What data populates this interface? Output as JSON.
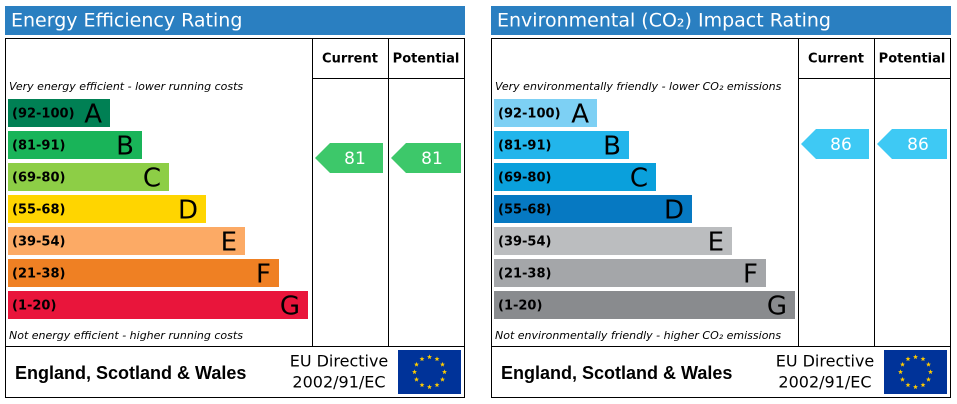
{
  "panels": [
    {
      "title": "Energy Efficiency Rating",
      "header": {
        "current": "Current",
        "potential": "Potential"
      },
      "top_note": "Very energy efficient - lower running costs",
      "bands": [
        {
          "range": "(92-100)",
          "letter": "A"
        },
        {
          "range": "(81-91)",
          "letter": "B"
        },
        {
          "range": "(69-80)",
          "letter": "C"
        },
        {
          "range": "(55-68)",
          "letter": "D"
        },
        {
          "range": "(39-54)",
          "letter": "E"
        },
        {
          "range": "(21-38)",
          "letter": "F"
        },
        {
          "range": "(1-20)",
          "letter": "G"
        }
      ],
      "bottom_note": "Not energy efficient - higher running costs",
      "current": 81,
      "potential": 81,
      "footer": {
        "region": "England, Scotland & Wales",
        "directive_line1": "EU Directive",
        "directive_line2": "2002/91/EC"
      }
    },
    {
      "title": "Environmental (CO₂) Impact Rating",
      "header": {
        "current": "Current",
        "potential": "Potential"
      },
      "top_note": "Very environmentally friendly - lower CO₂ emissions",
      "bands": [
        {
          "range": "(92-100)",
          "letter": "A"
        },
        {
          "range": "(81-91)",
          "letter": "B"
        },
        {
          "range": "(69-80)",
          "letter": "C"
        },
        {
          "range": "(55-68)",
          "letter": "D"
        },
        {
          "range": "(39-54)",
          "letter": "E"
        },
        {
          "range": "(21-38)",
          "letter": "F"
        },
        {
          "range": "(1-20)",
          "letter": "G"
        }
      ],
      "bottom_note": "Not environmentally friendly - higher CO₂ emissions",
      "current": 86,
      "potential": 86,
      "footer": {
        "region": "England, Scotland & Wales",
        "directive_line1": "EU Directive",
        "directive_line2": "2002/91/EC"
      }
    }
  ]
}
